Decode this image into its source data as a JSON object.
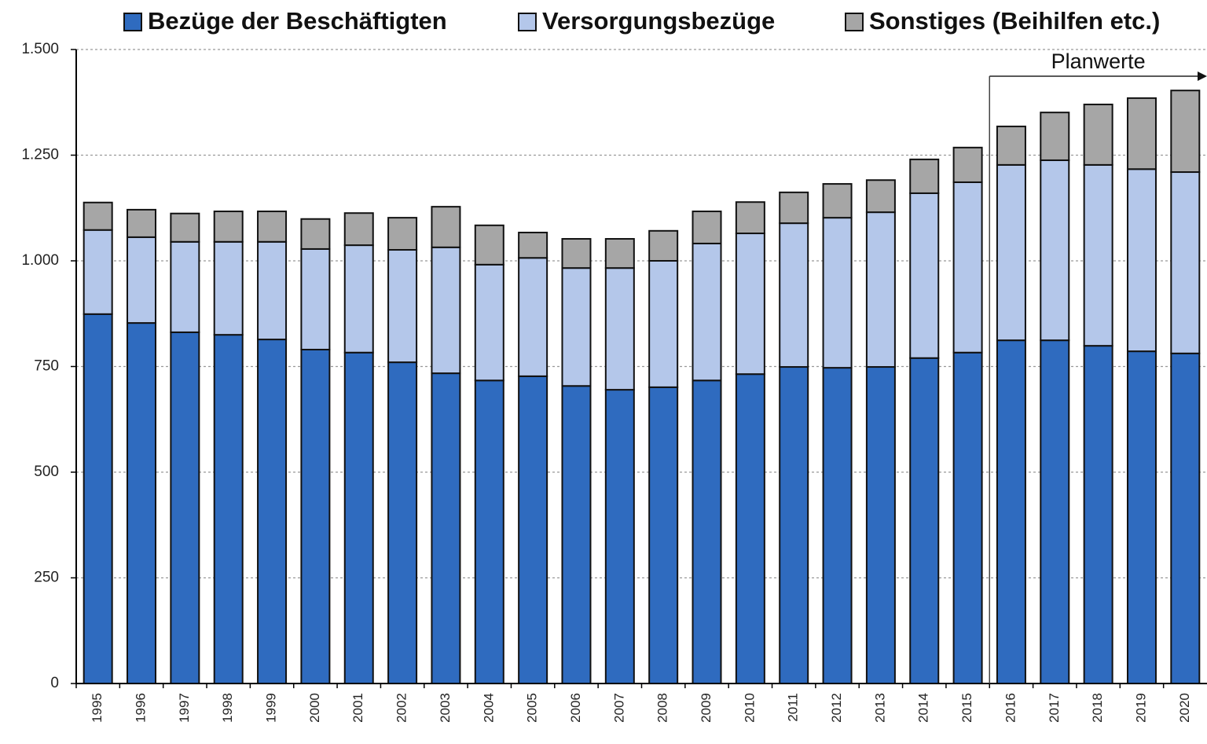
{
  "chart_data": {
    "type": "stacked_bar",
    "categories": [
      "1995",
      "1996",
      "1997",
      "1998",
      "1999",
      "2000",
      "2001",
      "2002",
      "2003",
      "2004",
      "2005",
      "2006",
      "2007",
      "2008",
      "2009",
      "2010",
      "2011",
      "2012",
      "2013",
      "2014",
      "2015",
      "2016",
      "2017",
      "2018",
      "2019",
      "2020"
    ],
    "series": [
      {
        "name": "Bezüge der Beschäftigten",
        "color": "#2f6bbf",
        "values": [
          874,
          853,
          831,
          825,
          814,
          790,
          783,
          760,
          734,
          717,
          727,
          704,
          695,
          701,
          717,
          732,
          749,
          747,
          749,
          770,
          783,
          812,
          812,
          799,
          786,
          781
        ]
      },
      {
        "name": "Versorgungsbezüge",
        "color": "#b4c7ea",
        "values": [
          199,
          203,
          214,
          220,
          231,
          238,
          254,
          266,
          298,
          274,
          280,
          279,
          288,
          299,
          324,
          333,
          340,
          355,
          366,
          390,
          403,
          415,
          426,
          428,
          431,
          429
        ]
      },
      {
        "name": "Sonstiges (Beihilfen etc.)",
        "color": "#a6a6a6",
        "values": [
          65,
          65,
          67,
          72,
          72,
          71,
          76,
          76,
          96,
          93,
          60,
          69,
          69,
          71,
          76,
          74,
          73,
          80,
          76,
          80,
          82,
          91,
          113,
          143,
          168,
          193
        ]
      }
    ],
    "annotation": "Planwerte",
    "ylim": [
      0,
      1500
    ],
    "yticks": [
      0,
      250,
      500,
      750,
      {
        "value": 1000,
        "label": "1.000"
      },
      {
        "value": 1250,
        "label": "1.250"
      },
      {
        "value": 1500,
        "label": "1.500"
      }
    ],
    "grid": true,
    "legend": "top"
  }
}
